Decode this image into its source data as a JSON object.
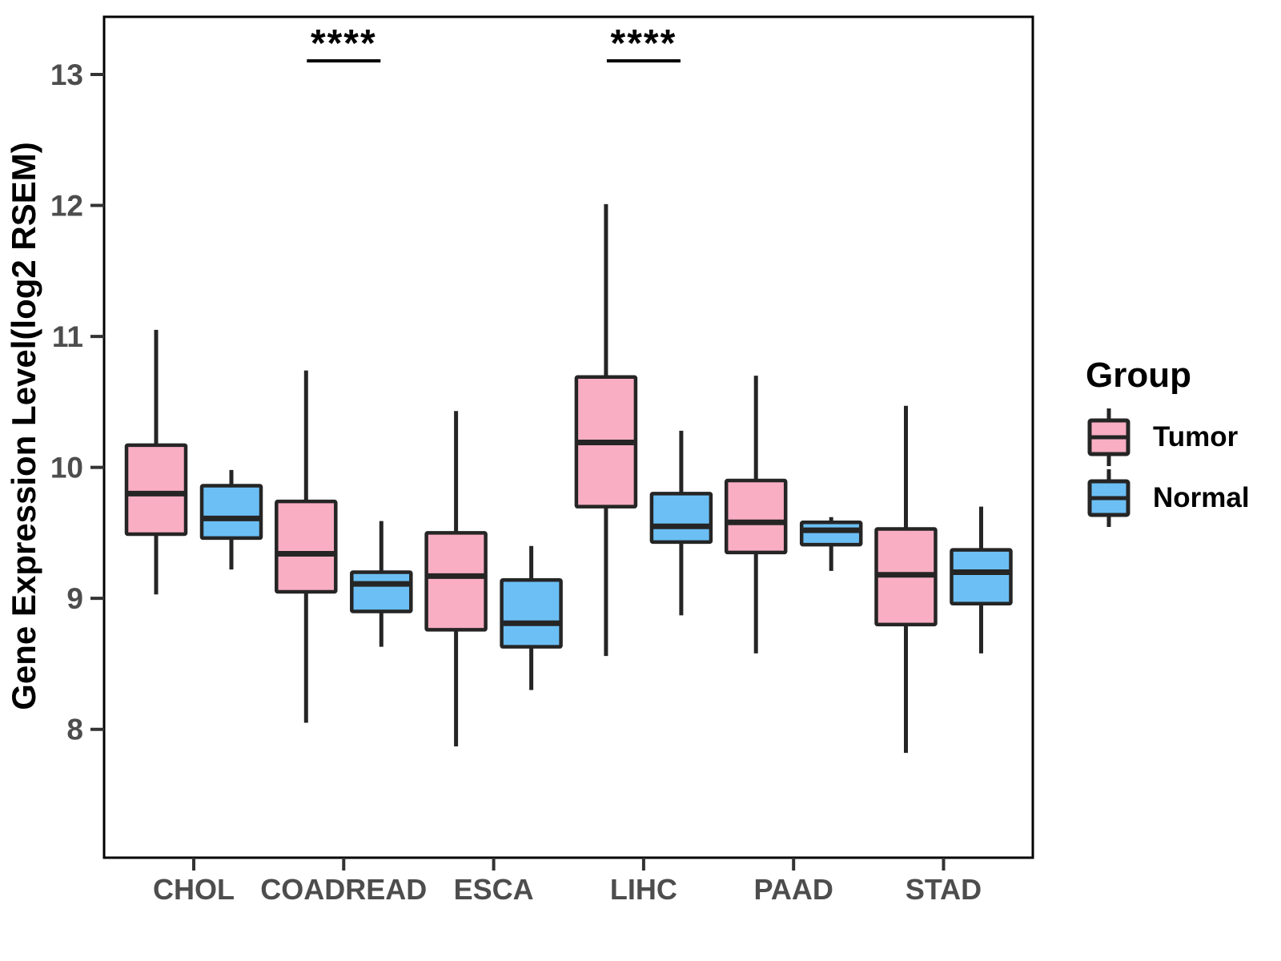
{
  "figure": {
    "y_axis_title": "Gene Expression Level(log2 RSEM)",
    "legend": {
      "title": "Group",
      "items": [
        {
          "label": "Tumor",
          "color": "#F9AEC3"
        },
        {
          "label": "Normal",
          "color": "#6CBFF5"
        }
      ]
    }
  },
  "chart_data": {
    "type": "boxplot",
    "title": "",
    "xlabel": "",
    "ylabel": "Gene Expression Level(log2 RSEM)",
    "categories": [
      "CHOL",
      "COADREAD",
      "ESCA",
      "LIHC",
      "PAAD",
      "STAD"
    ],
    "y_ticks": [
      8,
      9,
      10,
      11,
      12,
      13
    ],
    "ylim": [
      7.02,
      13.44
    ],
    "grid": false,
    "legend_position": "right",
    "colors": {
      "Tumor": "#F9AEC3",
      "Normal": "#6CBFF5",
      "stroke": "#252525",
      "axis_text": "#4d4d4d"
    },
    "series": [
      {
        "name": "Tumor",
        "boxes": [
          {
            "category": "CHOL",
            "whisker_low": 9.03,
            "q1": 9.49,
            "median": 9.8,
            "q3": 10.17,
            "whisker_high": 11.05
          },
          {
            "category": "COADREAD",
            "whisker_low": 8.05,
            "q1": 9.05,
            "median": 9.34,
            "q3": 9.74,
            "whisker_high": 10.74
          },
          {
            "category": "ESCA",
            "whisker_low": 7.87,
            "q1": 8.76,
            "median": 9.17,
            "q3": 9.5,
            "whisker_high": 10.43
          },
          {
            "category": "LIHC",
            "whisker_low": 8.56,
            "q1": 9.7,
            "median": 10.19,
            "q3": 10.69,
            "whisker_high": 12.01
          },
          {
            "category": "PAAD",
            "whisker_low": 8.58,
            "q1": 9.35,
            "median": 9.58,
            "q3": 9.9,
            "whisker_high": 10.7
          },
          {
            "category": "STAD",
            "whisker_low": 7.82,
            "q1": 8.8,
            "median": 9.18,
            "q3": 9.53,
            "whisker_high": 10.47
          }
        ]
      },
      {
        "name": "Normal",
        "boxes": [
          {
            "category": "CHOL",
            "whisker_low": 9.22,
            "q1": 9.46,
            "median": 9.61,
            "q3": 9.86,
            "whisker_high": 9.98
          },
          {
            "category": "COADREAD",
            "whisker_low": 8.63,
            "q1": 8.9,
            "median": 9.11,
            "q3": 9.2,
            "whisker_high": 9.59
          },
          {
            "category": "ESCA",
            "whisker_low": 8.3,
            "q1": 8.63,
            "median": 8.81,
            "q3": 9.14,
            "whisker_high": 9.4
          },
          {
            "category": "LIHC",
            "whisker_low": 8.87,
            "q1": 9.43,
            "median": 9.55,
            "q3": 9.8,
            "whisker_high": 10.28
          },
          {
            "category": "PAAD",
            "whisker_low": 9.21,
            "q1": 9.41,
            "median": 9.52,
            "q3": 9.58,
            "whisker_high": 9.62
          },
          {
            "category": "STAD",
            "whisker_low": 8.58,
            "q1": 8.96,
            "median": 9.2,
            "q3": 9.37,
            "whisker_high": 9.7
          }
        ]
      }
    ],
    "annotations": [
      {
        "category": "COADREAD",
        "text": "****"
      },
      {
        "category": "LIHC",
        "text": "****"
      }
    ]
  }
}
